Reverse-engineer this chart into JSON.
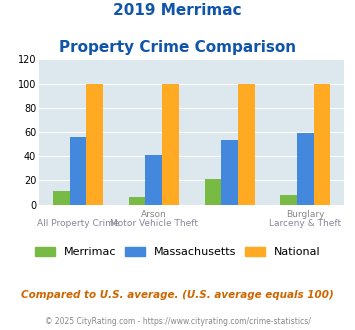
{
  "title_line1": "2019 Merrimac",
  "title_line2": "Property Crime Comparison",
  "row1_labels": [
    "",
    "Arson",
    "",
    "Burglary"
  ],
  "row2_labels": [
    "All Property Crime",
    "Motor Vehicle Theft",
    "",
    "Larceny & Theft"
  ],
  "merrimac": [
    11,
    6,
    21,
    8
  ],
  "massachusetts": [
    56,
    41,
    53,
    59
  ],
  "national": [
    100,
    100,
    100,
    100
  ],
  "merrimac_color": "#77bb44",
  "massachusetts_color": "#4488dd",
  "national_color": "#ffaa22",
  "bg_color": "#dde8ee",
  "ylim": [
    0,
    120
  ],
  "yticks": [
    0,
    20,
    40,
    60,
    80,
    100,
    120
  ],
  "footnote1": "Compared to U.S. average. (U.S. average equals 100)",
  "footnote2": "© 2025 CityRating.com - https://www.cityrating.com/crime-statistics/",
  "title_color": "#1155aa",
  "footnote1_color": "#cc6600",
  "footnote2_color": "#888888",
  "legend_labels": [
    "Merrimac",
    "Massachusetts",
    "National"
  ]
}
